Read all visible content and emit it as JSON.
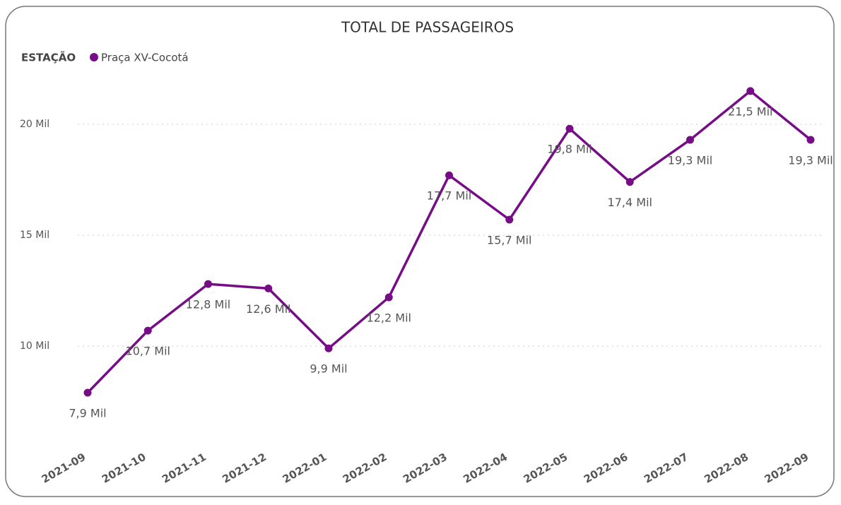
{
  "chart_data": {
    "type": "line",
    "title": "TOTAL DE PASSAGEIROS",
    "legend_title": "ESTAÇÃO",
    "categories": [
      "2021-09",
      "2021-10",
      "2021-11",
      "2021-12",
      "2022-01",
      "2022-02",
      "2022-03",
      "2022-04",
      "2022-05",
      "2022-06",
      "2022-07",
      "2022-08",
      "2022-09"
    ],
    "series": [
      {
        "name": "Praça XV-Cocotá",
        "color": "#760d87",
        "values": [
          7900,
          10700,
          12800,
          12600,
          9900,
          12200,
          17700,
          15700,
          19800,
          17400,
          19300,
          21500,
          19300
        ],
        "value_labels": [
          "7,9 Mil",
          "10,7 Mil",
          "12,8 Mil",
          "12,6 Mil",
          "9,9 Mil",
          "12,2 Mil",
          "17,7 Mil",
          "15,7 Mil",
          "19,8 Mil",
          "17,4 Mil",
          "19,3 Mil",
          "21,5 Mil",
          "19,3 Mil"
        ]
      }
    ],
    "ylim": [
      6500,
      22100
    ],
    "yticks": [
      {
        "value": 10000,
        "label": "10 Mil"
      },
      {
        "value": 15000,
        "label": "15 Mil"
      },
      {
        "value": 20000,
        "label": "20 Mil"
      }
    ],
    "grid": true
  }
}
